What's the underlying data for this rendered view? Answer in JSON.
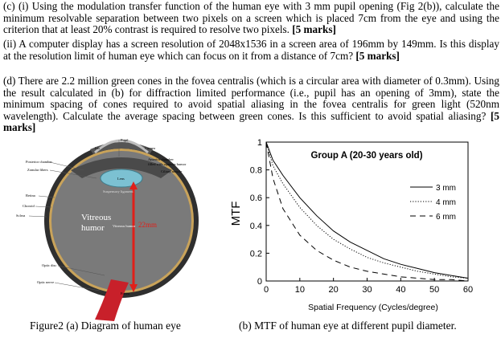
{
  "question": {
    "part_c": {
      "text": "(c) (i) Using the modulation transfer function of the human eye with 3 mm pupil opening (Fig 2(b)), calculate the minimum resolvable separation between two pixels on a screen which is placed 7cm from the eye and using the criterion that at least 20% contrast is required to resolve two pixels. ",
      "marks": "[5 marks]"
    },
    "part_ii": {
      "text": "(ii) A computer display has a screen resolution of 2048x1536 in a screen area of 196mm by 149mm. Is this display at the resolution limit of human eye which can focus on it from a distance of 7cm? ",
      "marks": "[5 marks]"
    },
    "part_d": {
      "text": "(d) There are 2.2 million green cones in the fovea centralis (which is a circular area with diameter of 0.3mm). Using the result calculated in (b) for diffraction limited performance (i.e., pupil has an opening of 3mm), state the minimum spacing of cones required to avoid spatial aliasing in the fovea centralis for green light (520nm wavelength). Calculate the average spacing between green cones. Is this sufficient to avoid spatial aliasing? ",
      "marks": "[5 marks]"
    }
  },
  "eye_diagram": {
    "labels": {
      "pupil": "Pupil",
      "iris": "Iris",
      "cornea": "Cornea",
      "posterior_chamber": "Posterior chamber",
      "zonular_fibers": "Zonular fibers",
      "anterior_chamber": "Anterior chamber",
      "anterior_chamber_2": "filled with aqueous humor",
      "ciliary_muscle": "Ciliary muscle",
      "lens": "Lens",
      "suspensory_ligament": "Suspensory ligament",
      "retina": "Retina",
      "choroid": "Choroid",
      "sclera": "Sclera",
      "vitreous_humor_1": "Vitreous",
      "vitreous_humor_2": "humor",
      "vitreous_small": "Vitreous humor",
      "measure": "22mm",
      "optic_disc": "Optic disc",
      "optic_nerve": "Optic nerve",
      "fovea": "Fovea"
    },
    "colors": {
      "eyeball": "#3a3a3a",
      "vitreous": "#7f7f7f",
      "optic_nerve": "#c8202a",
      "lens": "#6fb6c8",
      "measure": "#e0201a"
    }
  },
  "chart_data": {
    "type": "line",
    "title": "Group A (20-30 years old)",
    "xlabel": "Spatial Frequency (Cycles/degree)",
    "ylabel": "MTF",
    "xlim": [
      0,
      60
    ],
    "ylim": [
      0,
      1
    ],
    "x_ticks": [
      "0",
      "10",
      "20",
      "30",
      "40",
      "50",
      "60"
    ],
    "y_ticks": [
      "0",
      "0.2",
      "0.4",
      "0.6",
      "0.8",
      "1"
    ],
    "legend_position": "right",
    "grid": false,
    "x": [
      0,
      2,
      5,
      10,
      15,
      20,
      25,
      30,
      35,
      40,
      45,
      50,
      55,
      60
    ],
    "series": [
      {
        "name": "3 mm",
        "style": "solid",
        "values": [
          1.0,
          0.87,
          0.76,
          0.6,
          0.47,
          0.36,
          0.28,
          0.22,
          0.16,
          0.12,
          0.09,
          0.06,
          0.04,
          0.02
        ]
      },
      {
        "name": "4 mm",
        "style": "dotted",
        "values": [
          1.0,
          0.83,
          0.7,
          0.53,
          0.4,
          0.3,
          0.23,
          0.17,
          0.13,
          0.1,
          0.07,
          0.05,
          0.03,
          0.02
        ]
      },
      {
        "name": "6 mm",
        "style": "dashed",
        "values": [
          1.0,
          0.74,
          0.52,
          0.33,
          0.22,
          0.15,
          0.1,
          0.07,
          0.05,
          0.03,
          0.02,
          0.01,
          0.01,
          0.0
        ]
      }
    ]
  },
  "captions": {
    "a": "Figure2 (a) Diagram of human eye",
    "b": "(b) MTF of human eye at different pupil diameter."
  }
}
